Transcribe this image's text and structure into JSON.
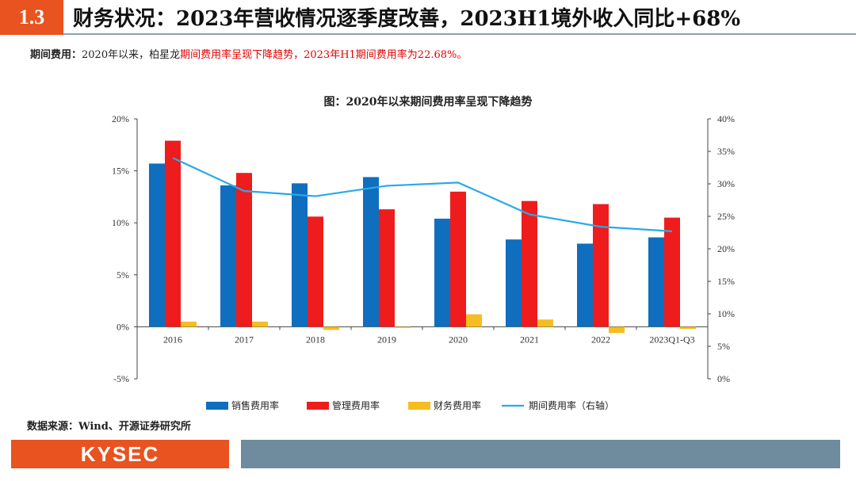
{
  "header": {
    "section_no": "1.3",
    "title": "财务状况：2023年营收情况逐季度改善，2023H1境外收入同比+68%"
  },
  "intro": {
    "label": "期间费用：",
    "text": "2020年以来，柏星龙",
    "highlight": "期间费用率呈现下降趋势，2023年H1期间费用率为22.68%。"
  },
  "chart_data": {
    "type": "bar",
    "title": "图：2020年以来期间费用率呈现下降趋势",
    "categories": [
      "2016",
      "2017",
      "2018",
      "2019",
      "2020",
      "2021",
      "2022",
      "2023Q1-Q3"
    ],
    "series": [
      {
        "name": "销售费用率",
        "kind": "bar",
        "axis": "left",
        "color": "#0f6ebe",
        "values": [
          15.7,
          13.6,
          13.8,
          14.4,
          10.4,
          8.4,
          8.0,
          8.6
        ]
      },
      {
        "name": "管理费用率",
        "kind": "bar",
        "axis": "left",
        "color": "#ee1c1c",
        "values": [
          17.9,
          14.8,
          10.6,
          11.3,
          13.0,
          12.1,
          11.8,
          10.5
        ]
      },
      {
        "name": "财务费用率",
        "kind": "bar",
        "axis": "left",
        "color": "#f5bd1f",
        "values": [
          0.5,
          0.5,
          -0.3,
          -0.1,
          1.2,
          0.7,
          -0.6,
          -0.2
        ]
      },
      {
        "name": "期间费用率（右轴）",
        "kind": "line",
        "axis": "right",
        "color": "#2aa9e6",
        "values": [
          34.0,
          28.9,
          28.1,
          29.7,
          30.2,
          25.3,
          23.4,
          22.7
        ]
      }
    ],
    "y_left": {
      "min": -5,
      "max": 20,
      "step": 5,
      "tick_labels": [
        "-5%",
        "0%",
        "5%",
        "10%",
        "15%",
        "20%"
      ]
    },
    "y_right": {
      "min": 0,
      "max": 40,
      "step": 5,
      "tick_labels": [
        "0%",
        "5%",
        "10%",
        "15%",
        "20%",
        "25%",
        "30%",
        "35%",
        "40%"
      ]
    },
    "legend_position": "bottom",
    "grid": false
  },
  "source": "数据来源：Wind、开源证券研究所",
  "footer": {
    "logo": "KYSEC"
  }
}
